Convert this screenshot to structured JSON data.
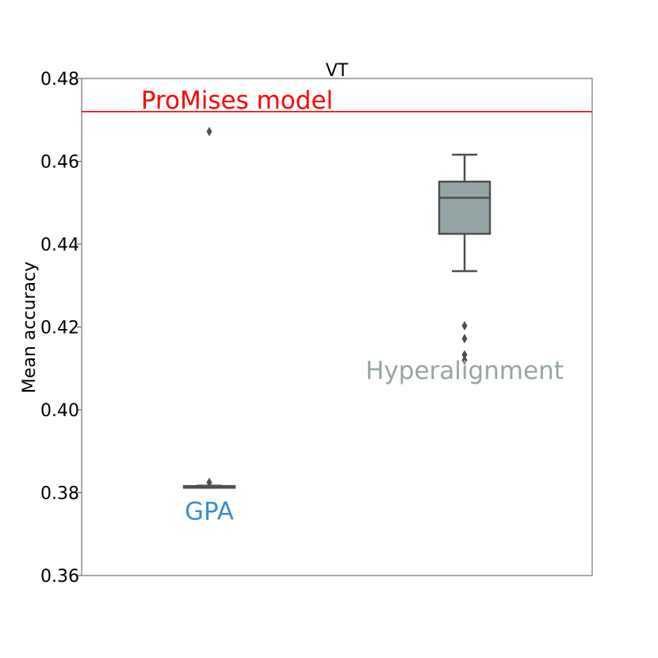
{
  "chart_data": {
    "type": "box",
    "title": "VT",
    "xlabel": "",
    "ylabel": "Mean accuracy",
    "ylim": [
      0.36,
      0.48
    ],
    "yticks": [
      "0.36",
      "0.38",
      "0.40",
      "0.42",
      "0.44",
      "0.46",
      "0.48"
    ],
    "grid": false,
    "reference_line": {
      "label": "ProMises model",
      "value": 0.472,
      "color": "#ff0000"
    },
    "groups": [
      {
        "label": "GPA",
        "label_color": "#3a8fd0",
        "label_y": 0.3735,
        "box_color": "#9ca3a6",
        "whisker_low": 0.3812,
        "q1": 0.3812,
        "median": 0.3814,
        "q3": 0.3816,
        "whisker_high": 0.3817,
        "outliers": [
          0.4672,
          0.3825
        ]
      },
      {
        "label": "Hyperalignment",
        "label_color": "#95a5a6",
        "label_y": 0.4075,
        "box_color": "#95a5a6",
        "whisker_low": 0.4335,
        "q1": 0.4425,
        "median": 0.4512,
        "q3": 0.4551,
        "whisker_high": 0.4616,
        "outliers": [
          0.4203,
          0.4172,
          0.4133,
          0.412
        ]
      }
    ]
  }
}
